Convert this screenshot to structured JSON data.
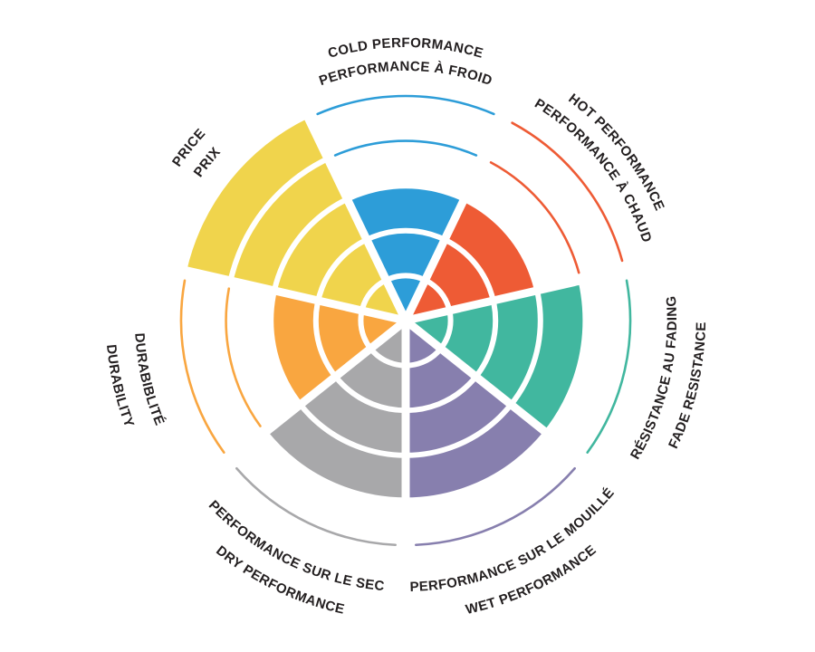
{
  "page": {
    "background": "#ffffff"
  },
  "chart_data": {
    "type": "polar-sector-wheel",
    "title": "",
    "description": "Tire performance rating wheel: 7 sectors, each filled from center to its rating level out of 5 rings; unfilled ring levels shown as thin colored arcs; bilingual curved labels outside the wheel (English on outer arc, French on inner arc).",
    "max_level": 5,
    "ring_levels": [
      1,
      2,
      3,
      4,
      5
    ],
    "grid": {
      "ring_divider_color": "#ffffff",
      "spoke_divider_color": "#ffffff"
    },
    "label_color": "#231f20",
    "segments": [
      {
        "id": "cold-performance",
        "label_en": "COLD PERFORMANCE",
        "label_fr": "PERFORMANCE À FROID",
        "value": 3,
        "color": "#2d9dd8",
        "label_side": "top"
      },
      {
        "id": "hot-performance",
        "label_en": "HOT PERFORMANCE",
        "label_fr": "PERFORMANCE À CHAUD",
        "value": 3,
        "color": "#ee5b35",
        "label_side": "top"
      },
      {
        "id": "fade-resistance",
        "label_en": "FADE RESISTANCE",
        "label_fr": "RÉSISTANCE AU FADING",
        "value": 4,
        "color": "#41b79f",
        "label_side": "bottom"
      },
      {
        "id": "wet-performance",
        "label_en": "WET PERFORMANCE",
        "label_fr": "PERFORMANCE SUR LE MOUILLÉ",
        "value": 4,
        "color": "#877fae",
        "label_side": "bottom"
      },
      {
        "id": "dry-performance",
        "label_en": "DRY PERFORMANCE",
        "label_fr": "PERFORMANCE SUR LE SEC",
        "value": 4,
        "color": "#a8a8aa",
        "label_side": "bottom"
      },
      {
        "id": "durability",
        "label_en": "DURABILITY",
        "label_fr": "DURABIBLITÉ",
        "value": 3,
        "color": "#f9a640",
        "label_side": "bottom"
      },
      {
        "id": "price",
        "label_en": "PRICE",
        "label_fr": "PRIX",
        "value": 5,
        "color": "#f0d44c",
        "label_side": "top"
      }
    ]
  }
}
